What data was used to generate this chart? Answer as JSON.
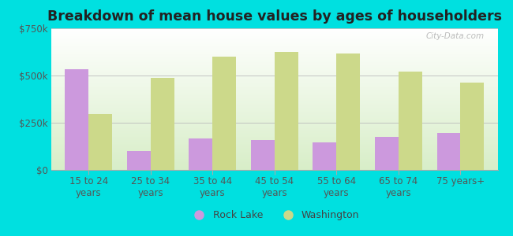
{
  "title": "Breakdown of mean house values by ages of householders",
  "categories": [
    "15 to 24\nyears",
    "25 to 34\nyears",
    "35 to 44\nyears",
    "45 to 54\nyears",
    "55 to 64\nyears",
    "65 to 74\nyears",
    "75 years+"
  ],
  "rock_lake": [
    535000,
    100000,
    165000,
    160000,
    145000,
    175000,
    195000
  ],
  "washington": [
    295000,
    487000,
    600000,
    625000,
    615000,
    520000,
    462000
  ],
  "rock_lake_color": "#cc99dd",
  "washington_color": "#ccd98a",
  "background_color": "#00e0e0",
  "ylim": [
    0,
    750000
  ],
  "yticks": [
    0,
    250000,
    500000,
    750000
  ],
  "ytick_labels": [
    "$0",
    "$250k",
    "$500k",
    "$750k"
  ],
  "bar_width": 0.38,
  "legend_labels": [
    "Rock Lake",
    "Washington"
  ],
  "watermark": "City-Data.com",
  "title_fontsize": 12.5,
  "tick_fontsize": 8.5,
  "legend_fontsize": 9
}
